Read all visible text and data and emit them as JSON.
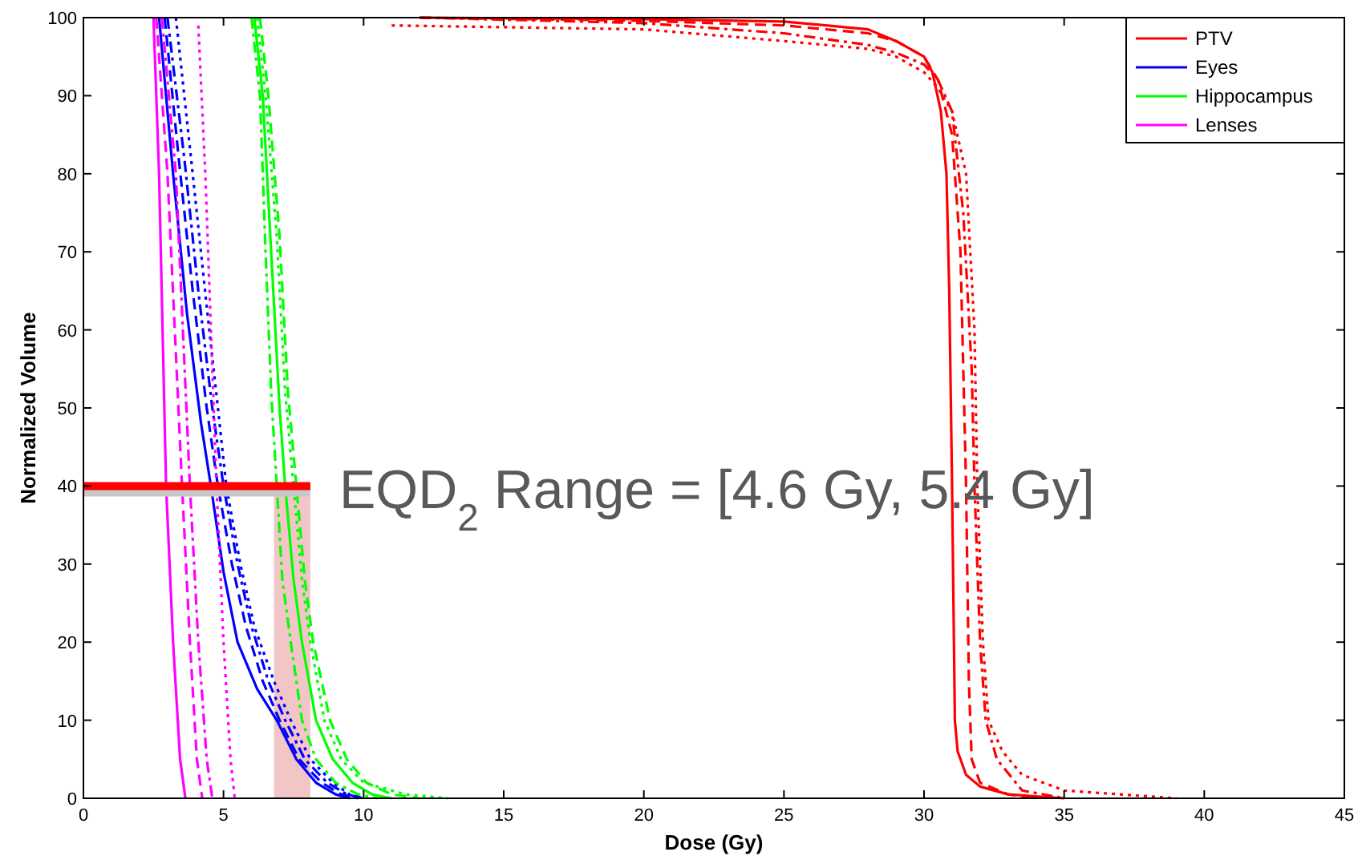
{
  "chart_data": {
    "type": "line",
    "xlabel": "Dose (Gy)",
    "ylabel": "Normalized Volume",
    "xlim": [
      0,
      45
    ],
    "ylim": [
      0,
      100
    ],
    "xticks": [
      0,
      5,
      10,
      15,
      20,
      25,
      30,
      35,
      40,
      45
    ],
    "yticks": [
      0,
      10,
      20,
      30,
      40,
      50,
      60,
      70,
      80,
      90,
      100
    ],
    "grid": false,
    "legend": "top right",
    "series": [
      {
        "name": "PTV",
        "color": "#ff0000",
        "line_style": "solid",
        "x": [
          12,
          20,
          25,
          28,
          29,
          30,
          30.3,
          30.6,
          30.8,
          30.9,
          31,
          31.05,
          31.1,
          31.2,
          31.5,
          32,
          33,
          35
        ],
        "values": [
          100,
          99.8,
          99.5,
          98.5,
          97,
          95,
          93,
          88,
          80,
          65,
          40,
          25,
          10,
          6,
          3,
          1.5,
          0.5,
          0
        ]
      },
      {
        "color": "#ff0000",
        "line_style": "dashed",
        "x": [
          12,
          20,
          25,
          28,
          29,
          30,
          30.5,
          31,
          31.3,
          31.5,
          31.6,
          31.7,
          32,
          33,
          34
        ],
        "values": [
          100,
          99.6,
          99,
          98,
          97,
          95,
          92,
          85,
          70,
          40,
          15,
          5,
          2,
          0.5,
          0
        ]
      },
      {
        "color": "#ff0000",
        "line_style": "dashdot",
        "x": [
          12,
          20,
          25,
          28,
          29,
          30,
          30.5,
          31,
          31.4,
          31.7,
          31.8,
          32,
          32.2,
          32.6,
          33.5,
          35
        ],
        "values": [
          100,
          99.3,
          98,
          96.5,
          95.5,
          94,
          92,
          88,
          75,
          55,
          40,
          20,
          10,
          5,
          1,
          0
        ]
      },
      {
        "color": "#ff0000",
        "line_style": "dotted",
        "x": [
          11,
          20,
          25,
          28,
          29,
          30,
          30.5,
          31,
          31.5,
          31.8,
          31.9,
          32.1,
          32.3,
          32.8,
          33.5,
          35,
          39
        ],
        "values": [
          99,
          98.5,
          97,
          96,
          95,
          93,
          91,
          88,
          80,
          60,
          40,
          20,
          10,
          6,
          3,
          1,
          0
        ]
      },
      {
        "name": "Eyes",
        "color": "#0000ff",
        "line_style": "solid",
        "x": [
          2.7,
          3.2,
          3.7,
          4.2,
          4.55,
          5,
          5.5,
          6.2,
          6.9,
          7.6,
          8.3,
          9,
          9.5
        ],
        "values": [
          100,
          80,
          62,
          48,
          40,
          29,
          20,
          14,
          10,
          5,
          2,
          0.5,
          0
        ]
      },
      {
        "color": "#0000ff",
        "line_style": "dashed",
        "x": [
          2.9,
          3.4,
          3.9,
          4.4,
          4.8,
          5.3,
          5.8,
          6.4,
          7,
          7.7,
          8.5,
          9.2,
          9.8
        ],
        "values": [
          100,
          82,
          65,
          50,
          40,
          30,
          22,
          15,
          10,
          5,
          2,
          0.5,
          0
        ]
      },
      {
        "color": "#0000ff",
        "line_style": "dashdot",
        "x": [
          3,
          3.6,
          4.1,
          4.6,
          5,
          5.5,
          6,
          6.6,
          7.2,
          7.9,
          8.7,
          9.4,
          10
        ],
        "values": [
          100,
          82,
          65,
          50,
          40,
          30,
          22,
          15,
          10,
          5,
          2,
          0.5,
          0
        ]
      },
      {
        "color": "#0000ff",
        "line_style": "dotted",
        "x": [
          3.3,
          3.9,
          4.4,
          4.8,
          5.1,
          5.6,
          6.1,
          6.8,
          7.4,
          8.1,
          8.9,
          9.5,
          10
        ],
        "values": [
          100,
          80,
          63,
          50,
          40,
          30,
          22,
          15,
          10,
          5,
          2,
          0.5,
          0
        ]
      },
      {
        "name": "Hippocampus",
        "color": "#00ff00",
        "line_style": "solid",
        "x": [
          6.1,
          6.4,
          6.7,
          7,
          7.2,
          7.5,
          7.8,
          8.3,
          8.9,
          9.6,
          10.3,
          11
        ],
        "values": [
          100,
          90,
          70,
          50,
          40,
          28,
          20,
          10,
          5,
          2,
          0.5,
          0
        ]
      },
      {
        "color": "#00ff00",
        "line_style": "dashed",
        "x": [
          6.3,
          6.6,
          7,
          7.3,
          7.6,
          7.9,
          8.2,
          8.8,
          9.4,
          10.1,
          11,
          12
        ],
        "values": [
          100,
          90,
          72,
          52,
          40,
          28,
          20,
          10,
          5,
          2,
          0.5,
          0
        ]
      },
      {
        "color": "#00ff00",
        "line_style": "dashdot",
        "x": [
          6,
          6.3,
          6.5,
          6.7,
          6.9,
          7.1,
          7.4,
          7.8,
          8.3,
          9,
          9.8,
          10.5
        ],
        "values": [
          100,
          90,
          70,
          52,
          40,
          28,
          20,
          10,
          5,
          2,
          0.5,
          0
        ]
      },
      {
        "color": "#00ff00",
        "line_style": "dotted",
        "x": [
          6.2,
          6.5,
          6.9,
          7.2,
          7.5,
          7.8,
          8.1,
          8.6,
          9.2,
          10,
          11.5,
          13
        ],
        "values": [
          100,
          90,
          72,
          52,
          40,
          28,
          20,
          10,
          5,
          2,
          0.5,
          0
        ]
      },
      {
        "name": "Lenses",
        "color": "#ff00ff",
        "line_style": "solid",
        "x": [
          2.5,
          2.7,
          2.95,
          3.2,
          3.45,
          3.64
        ],
        "values": [
          100,
          80,
          40,
          20,
          5,
          0
        ]
      },
      {
        "color": "#ff00ff",
        "line_style": "dashed",
        "x": [
          2.6,
          3,
          3.52,
          3.8,
          4.05,
          4.24
        ],
        "values": [
          100,
          80,
          40,
          20,
          5,
          0
        ]
      },
      {
        "color": "#ff00ff",
        "line_style": "dashdot",
        "x": [
          2.8,
          3.3,
          3.8,
          4.1,
          4.4,
          4.6
        ],
        "values": [
          100,
          80,
          40,
          20,
          5,
          0
        ]
      },
      {
        "color": "#ff00ff",
        "line_style": "dotted",
        "x": [
          4.1,
          4.35,
          4.75,
          5,
          5.25,
          5.4
        ],
        "values": [
          99,
          80,
          40,
          20,
          5,
          0
        ]
      }
    ],
    "ref_lines": [
      {
        "axis": "y",
        "value": 40,
        "color": "#ff0000"
      }
    ],
    "bands": [
      {
        "axis": "x",
        "from": 6.8,
        "to": 8.1,
        "color": "#f2c6c6"
      }
    ],
    "annotations": [
      {
        "text": "EQD$_{2}$ Range = [4.6 Gy, 5.4 Gy]",
        "x": 8.1,
        "y": 40
      }
    ]
  }
}
